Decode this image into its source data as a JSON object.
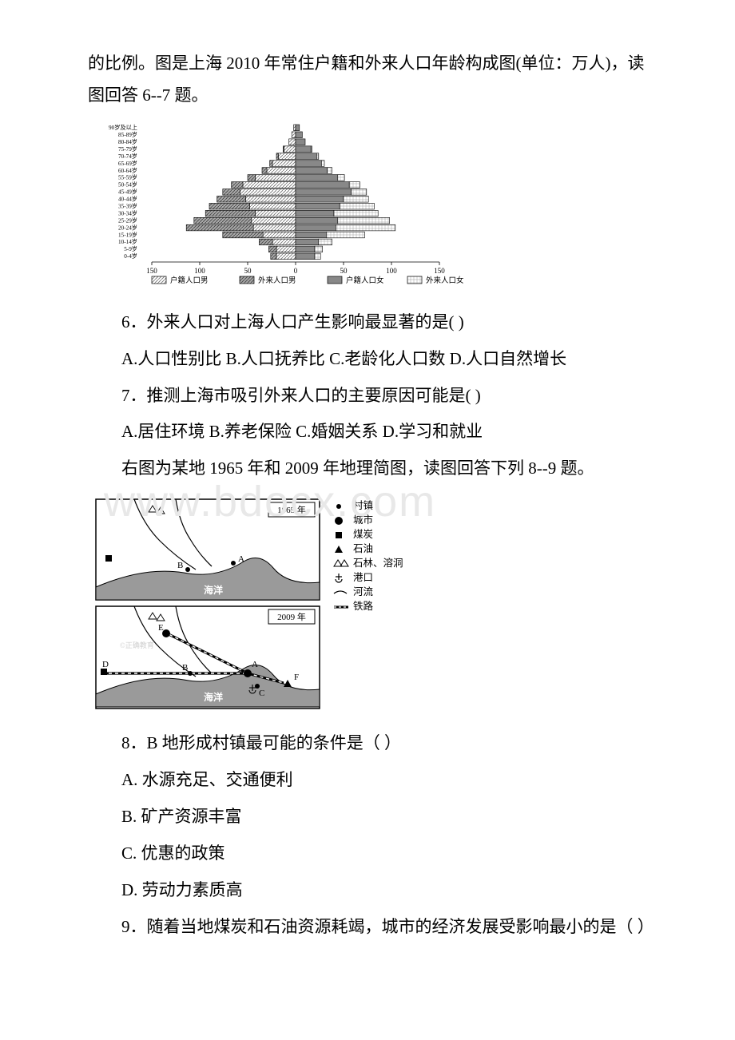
{
  "intro": "的比例。图是上海 2010 年常住户籍和外来人口年龄构成图(单位：万人)，读图回答 6--7 题。",
  "pyramid": {
    "age_labels": [
      "90岁及以上",
      "85-89岁",
      "80-84岁",
      "75-79岁",
      "70-74岁",
      "65-69岁",
      "60-64岁",
      "55-59岁",
      "50-54岁",
      "45-49岁",
      "40-44岁",
      "35-39岁",
      "30-34岁",
      "25-29岁",
      "20-24岁",
      "15-19岁",
      "10-14岁",
      "5-9岁",
      "0-4岁"
    ],
    "huji_male": [
      2,
      4,
      7,
      12,
      18,
      24,
      30,
      42,
      55,
      58,
      52,
      48,
      42,
      46,
      44,
      34,
      24,
      20,
      20
    ],
    "wailai_male": [
      0,
      0,
      0,
      1,
      2,
      3,
      5,
      8,
      12,
      18,
      30,
      42,
      52,
      60,
      70,
      42,
      14,
      8,
      6
    ],
    "huji_female": [
      4,
      7,
      10,
      16,
      22,
      27,
      33,
      44,
      56,
      58,
      50,
      46,
      40,
      44,
      42,
      32,
      24,
      20,
      20
    ],
    "wailai_female": [
      0,
      0,
      0,
      1,
      2,
      3,
      5,
      7,
      11,
      16,
      26,
      36,
      46,
      54,
      62,
      40,
      14,
      8,
      6
    ],
    "axis_ticks": [
      "150",
      "100",
      "50",
      "0",
      "50",
      "100",
      "150"
    ],
    "legend": [
      "户籍人口男",
      "外来人口男",
      "户籍人口女",
      "外来人口女"
    ],
    "colors": {
      "huji": "#ffffff",
      "wailai": "#b0b0b0",
      "huji_hatch": "#606060",
      "stroke": "#000000",
      "female_fill": "#e8e8e8"
    }
  },
  "q6": {
    "stem": "6．外来人口对上海人口产生影响最显著的是(  )",
    "opts": "A.人口性别比 B.人口抚养比 C.老龄化人口数 D.人口自然增长"
  },
  "q7": {
    "stem": "7．推测上海市吸引外来人口的主要原因可能是(  )",
    "opts": "A.居住环境 B.养老保险 C.婚姻关系 D.学习和就业"
  },
  "bridge": "右图为某地 1965 年和 2009 年地理简图，读图回答下列 8--9 题。",
  "watermark": "www.bdocx.com",
  "map": {
    "years": [
      "1965 年",
      "2009 年"
    ],
    "legend_items": [
      {
        "symbol": "dot",
        "label": "村镇"
      },
      {
        "symbol": "bigdot",
        "label": "城市"
      },
      {
        "symbol": "square",
        "label": "煤炭"
      },
      {
        "symbol": "triangle",
        "label": "石油"
      },
      {
        "symbol": "karst",
        "label": "石林、溶洞"
      },
      {
        "symbol": "port",
        "label": "港口"
      },
      {
        "symbol": "river",
        "label": "河流"
      },
      {
        "symbol": "rail",
        "label": "铁路"
      }
    ],
    "points_1965": [
      "A",
      "B"
    ],
    "points_2009": [
      "A",
      "B",
      "C",
      "D",
      "E",
      "F"
    ],
    "sea_label": "海洋",
    "colors": {
      "sea": "#9a9a9a",
      "land": "#ffffff",
      "line": "#000000"
    }
  },
  "q8": {
    "stem": "8．B 地形成村镇最可能的条件是（  ）",
    "opts": [
      "A. 水源充足、交通便利",
      "B. 矿产资源丰富",
      "C. 优惠的政策",
      "D. 劳动力素质高"
    ]
  },
  "q9": {
    "stem": "9．随着当地煤炭和石油资源耗竭，城市的经济发展受影响最小的是（  ）"
  }
}
